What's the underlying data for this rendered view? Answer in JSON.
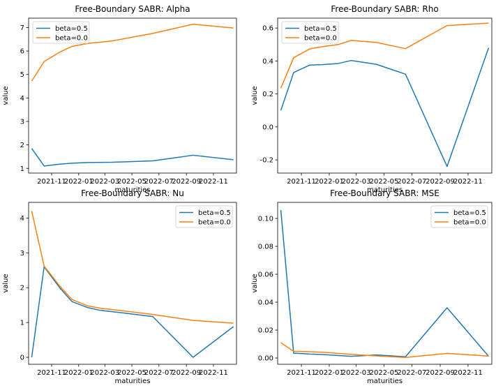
{
  "chart_data": [
    {
      "type": "line",
      "title": "Free-Boundary SABR: Alpha",
      "xlabel": "maturities",
      "ylabel": "value",
      "legend": "top-left",
      "grid": false,
      "x": [
        "2021-09-17",
        "2021-10-15",
        "2021-11-19",
        "2021-12-17",
        "2022-01-21",
        "2022-03-18",
        "2022-06-17",
        "2022-09-16",
        "2022-12-16"
      ],
      "xlim": [
        "2021-09-10",
        "2022-12-23"
      ],
      "ylim": [
        0.8,
        7.4
      ],
      "yticks": [
        1,
        2,
        3,
        4,
        5,
        6,
        7
      ],
      "xticks": [
        "2021-11",
        "2022-01",
        "2022-03",
        "2022-05",
        "2022-07",
        "2022-09",
        "2022-11"
      ],
      "series": [
        {
          "name": "beta=0.5",
          "color": "#1f77b4",
          "values": [
            1.85,
            1.1,
            1.18,
            1.22,
            1.25,
            1.26,
            1.32,
            1.56,
            1.37
          ]
        },
        {
          "name": "beta=0.0",
          "color": "#ff7f0e",
          "values": [
            4.72,
            5.55,
            5.95,
            6.2,
            6.32,
            6.43,
            6.75,
            7.14,
            6.98
          ]
        }
      ]
    },
    {
      "type": "line",
      "title": "Free-Boundary SABR: Rho",
      "xlabel": "maturities",
      "ylabel": "value",
      "legend": "top-left",
      "grid": false,
      "x": [
        "2021-09-17",
        "2021-10-15",
        "2021-11-19",
        "2021-12-17",
        "2022-01-21",
        "2022-02-18",
        "2022-04-14",
        "2022-06-17",
        "2022-09-16",
        "2022-12-16"
      ],
      "xlim": [
        "2021-09-10",
        "2022-12-23"
      ],
      "ylim": [
        -0.28,
        0.66
      ],
      "yticks": [
        -0.2,
        0.0,
        0.2,
        0.4,
        0.6
      ],
      "xticks": [
        "2021-11",
        "2022-01",
        "2022-03",
        "2022-05",
        "2022-07",
        "2022-09",
        "2022-11"
      ],
      "series": [
        {
          "name": "beta=0.5",
          "color": "#1f77b4",
          "values": [
            0.1,
            0.33,
            0.375,
            0.378,
            0.385,
            0.403,
            0.38,
            0.32,
            -0.24,
            0.48
          ]
        },
        {
          "name": "beta=0.0",
          "color": "#ff7f0e",
          "values": [
            0.235,
            0.42,
            0.473,
            0.487,
            0.5,
            0.525,
            0.513,
            0.475,
            0.615,
            0.63
          ]
        }
      ]
    },
    {
      "type": "line",
      "title": "Free-Boundary SABR: Nu",
      "xlabel": "maturities",
      "ylabel": "value",
      "legend": "top-right",
      "grid": false,
      "x": [
        "2021-09-17",
        "2021-10-15",
        "2021-11-19",
        "2021-12-17",
        "2022-01-21",
        "2022-02-18",
        "2022-04-14",
        "2022-06-17",
        "2022-09-16",
        "2022-12-16"
      ],
      "xlim": [
        "2021-09-10",
        "2022-12-23"
      ],
      "ylim": [
        -0.2,
        4.45
      ],
      "yticks": [
        0,
        1,
        2,
        3,
        4
      ],
      "xticks": [
        "2021-11",
        "2022-01",
        "2022-03",
        "2022-05",
        "2022-07",
        "2022-09",
        "2022-11"
      ],
      "series": [
        {
          "name": "beta=0.5",
          "color": "#1f77b4",
          "values": [
            0.0,
            2.6,
            2.0,
            1.6,
            1.43,
            1.35,
            1.27,
            1.17,
            0.0,
            0.88
          ]
        },
        {
          "name": "beta=0.0",
          "color": "#ff7f0e",
          "values": [
            4.2,
            2.62,
            2.05,
            1.66,
            1.48,
            1.41,
            1.33,
            1.23,
            1.06,
            0.98
          ]
        }
      ]
    },
    {
      "type": "line",
      "title": "Free-Boundary SABR: MSE",
      "xlabel": "maturities",
      "ylabel": "value",
      "legend": "top-right",
      "grid": false,
      "x": [
        "2021-09-17",
        "2021-10-15",
        "2021-11-19",
        "2021-12-17",
        "2022-02-18",
        "2022-04-14",
        "2022-06-17",
        "2022-09-16",
        "2022-12-16"
      ],
      "xlim": [
        "2021-09-10",
        "2022-12-23"
      ],
      "ylim": [
        -0.0045,
        0.1115
      ],
      "yticks": [
        0.0,
        0.02,
        0.04,
        0.06,
        0.08,
        0.1
      ],
      "xticks": [
        "2021-11",
        "2022-01",
        "2022-03",
        "2022-05",
        "2022-07",
        "2022-09",
        "2022-11"
      ],
      "series": [
        {
          "name": "beta=0.5",
          "color": "#1f77b4",
          "values": [
            0.106,
            0.0035,
            0.0028,
            0.0025,
            0.0012,
            0.0022,
            0.0009,
            0.036,
            0.0012
          ]
        },
        {
          "name": "beta=0.0",
          "color": "#ff7f0e",
          "values": [
            0.011,
            0.0048,
            0.0045,
            0.0041,
            0.0026,
            0.0015,
            0.0004,
            0.0033,
            0.0014
          ]
        }
      ]
    }
  ]
}
